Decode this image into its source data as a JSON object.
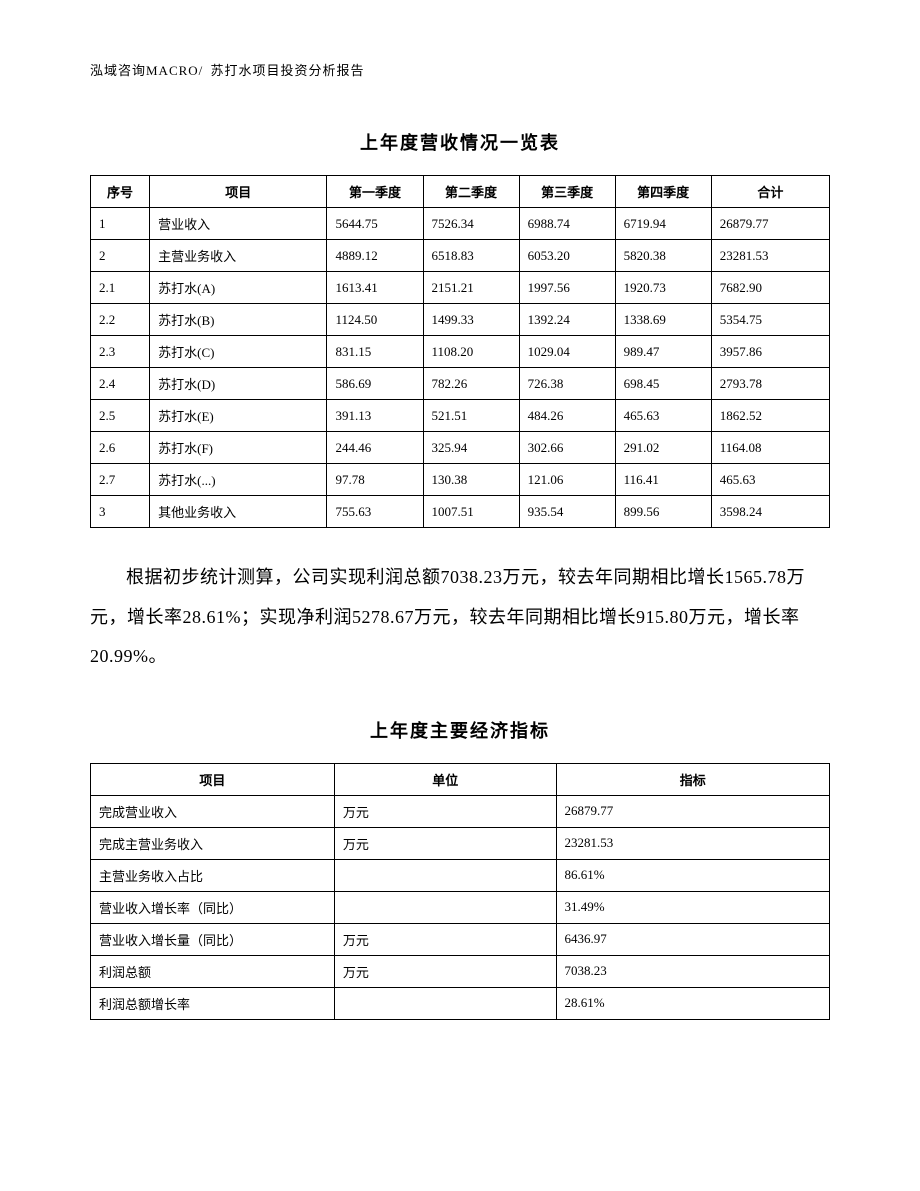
{
  "header": {
    "company": "泓域咨询MACRO/",
    "report_name": "苏打水项目投资分析报告"
  },
  "table1": {
    "title": "上年度营收情况一览表",
    "columns": [
      "序号",
      "项目",
      "第一季度",
      "第二季度",
      "第三季度",
      "第四季度",
      "合计"
    ],
    "rows": [
      [
        "1",
        "营业收入",
        "5644.75",
        "7526.34",
        "6988.74",
        "6719.94",
        "26879.77"
      ],
      [
        "2",
        "主营业务收入",
        "4889.12",
        "6518.83",
        "6053.20",
        "5820.38",
        "23281.53"
      ],
      [
        "2.1",
        "苏打水(A)",
        "1613.41",
        "2151.21",
        "1997.56",
        "1920.73",
        "7682.90"
      ],
      [
        "2.2",
        "苏打水(B)",
        "1124.50",
        "1499.33",
        "1392.24",
        "1338.69",
        "5354.75"
      ],
      [
        "2.3",
        "苏打水(C)",
        "831.15",
        "1108.20",
        "1029.04",
        "989.47",
        "3957.86"
      ],
      [
        "2.4",
        "苏打水(D)",
        "586.69",
        "782.26",
        "726.38",
        "698.45",
        "2793.78"
      ],
      [
        "2.5",
        "苏打水(E)",
        "391.13",
        "521.51",
        "484.26",
        "465.63",
        "1862.52"
      ],
      [
        "2.6",
        "苏打水(F)",
        "244.46",
        "325.94",
        "302.66",
        "291.02",
        "1164.08"
      ],
      [
        "2.7",
        "苏打水(...)",
        "97.78",
        "130.38",
        "121.06",
        "116.41",
        "465.63"
      ],
      [
        "3",
        "其他业务收入",
        "755.63",
        "1007.51",
        "935.54",
        "899.56",
        "3598.24"
      ]
    ]
  },
  "paragraph": "根据初步统计测算，公司实现利润总额7038.23万元，较去年同期相比增长1565.78万元，增长率28.61%；实现净利润5278.67万元，较去年同期相比增长915.80万元，增长率20.99%。",
  "table2": {
    "title": "上年度主要经济指标",
    "columns": [
      "项目",
      "单位",
      "指标"
    ],
    "rows": [
      [
        "完成营业收入",
        "万元",
        "26879.77"
      ],
      [
        "完成主营业务收入",
        "万元",
        "23281.53"
      ],
      [
        "主营业务收入占比",
        "",
        "86.61%"
      ],
      [
        "营业收入增长率（同比）",
        "",
        "31.49%"
      ],
      [
        "营业收入增长量（同比）",
        "万元",
        "6436.97"
      ],
      [
        "利润总额",
        "万元",
        "7038.23"
      ],
      [
        "利润总额增长率",
        "",
        "28.61%"
      ]
    ]
  }
}
